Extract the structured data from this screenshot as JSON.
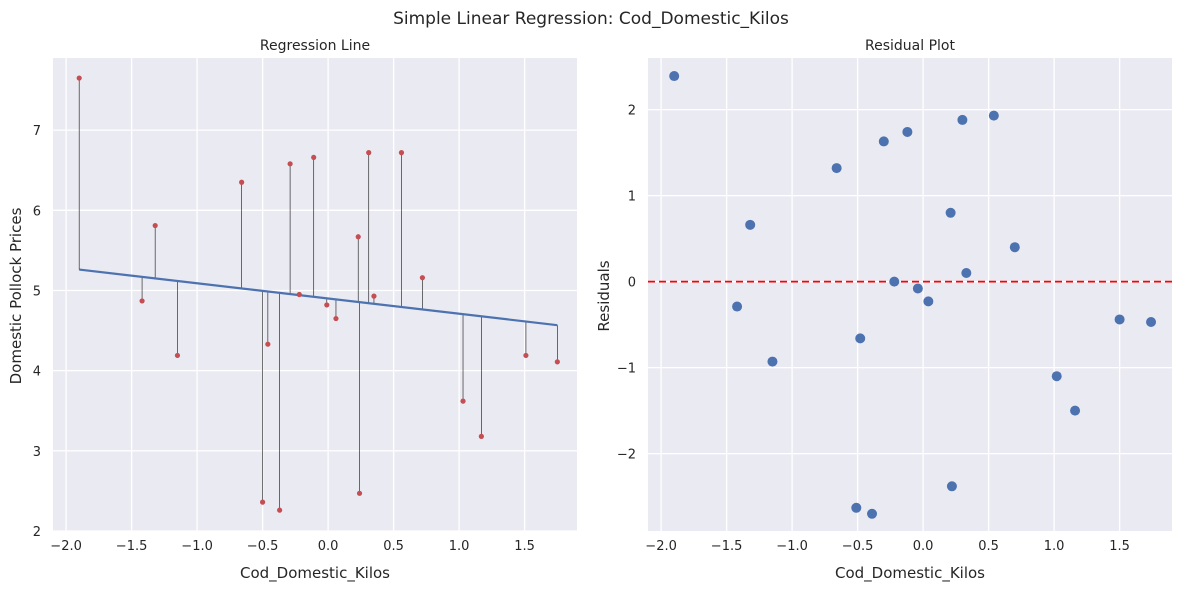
{
  "figure": {
    "suptitle": "Simple Linear Regression: Cod_Domestic_Kilos",
    "background": "#ffffff",
    "axes_facecolor": "#eaeaf2",
    "grid_color": "#ffffff"
  },
  "chart_data": [
    {
      "type": "scatter",
      "title": "Regression Line",
      "xlabel": "Cod_Domestic_Kilos",
      "ylabel": "Domestic Pollock Prices",
      "xlim": [
        -2.1,
        1.9
      ],
      "ylim": [
        2.0,
        7.9
      ],
      "xticks": [
        -2.0,
        -1.5,
        -1.0,
        -0.5,
        0.0,
        0.5,
        1.0,
        1.5
      ],
      "xtick_labels": [
        "−2.0",
        "−1.5",
        "−1.0",
        "−0.5",
        "0.0",
        "0.5",
        "1.0",
        "1.5"
      ],
      "yticks": [
        2,
        3,
        4,
        5,
        6,
        7
      ],
      "ytick_labels": [
        "2",
        "3",
        "4",
        "5",
        "6",
        "7"
      ],
      "grid": true,
      "point_color": "#c44e52",
      "line_color": "#4c72b0",
      "residual_line_color": "#000000",
      "regression_line": {
        "intercept": 4.9,
        "slope": -0.19
      },
      "x": [
        -1.9,
        -1.42,
        -1.32,
        -1.15,
        -0.66,
        -0.5,
        -0.46,
        -0.37,
        -0.22,
        -0.29,
        -0.11,
        -0.01,
        0.06,
        0.23,
        0.24,
        0.31,
        0.35,
        0.56,
        0.72,
        1.03,
        1.17,
        1.51,
        1.75
      ],
      "y": [
        7.65,
        4.87,
        5.81,
        4.19,
        6.35,
        2.36,
        4.33,
        2.26,
        4.95,
        6.58,
        6.66,
        4.82,
        4.65,
        5.67,
        2.47,
        6.72,
        4.93,
        6.72,
        5.16,
        3.62,
        3.18,
        4.19,
        4.11
      ]
    },
    {
      "type": "scatter",
      "title": "Residual Plot",
      "xlabel": "Cod_Domestic_Kilos",
      "ylabel": "Residuals",
      "xlim": [
        -2.1,
        1.9
      ],
      "ylim": [
        -2.9,
        2.6
      ],
      "xticks": [
        -2.0,
        -1.5,
        -1.0,
        -0.5,
        0.0,
        0.5,
        1.0,
        1.5
      ],
      "xtick_labels": [
        "−2.0",
        "−1.5",
        "−1.0",
        "−0.5",
        "0.0",
        "0.5",
        "1.0",
        "1.5"
      ],
      "yticks": [
        -2,
        -1,
        0,
        1,
        2
      ],
      "ytick_labels": [
        "−2",
        "−1",
        "0",
        "1",
        "2"
      ],
      "grid": true,
      "point_color": "#4c72b0",
      "zero_line": {
        "y": 0,
        "color": "#ff0000",
        "style": "dashed"
      },
      "x": [
        -1.9,
        -1.42,
        -1.32,
        -1.15,
        -0.66,
        -0.51,
        -0.48,
        -0.39,
        -0.3,
        -0.22,
        -0.12,
        -0.04,
        0.04,
        0.21,
        0.22,
        0.3,
        0.33,
        0.54,
        0.7,
        1.02,
        1.16,
        1.5,
        1.74
      ],
      "y": [
        2.39,
        -0.29,
        0.66,
        -0.93,
        1.32,
        -2.63,
        -0.66,
        -2.7,
        1.63,
        0.0,
        1.74,
        -0.08,
        -0.23,
        0.8,
        -2.38,
        1.88,
        0.1,
        1.93,
        0.4,
        -1.1,
        -1.5,
        -0.44,
        -0.47
      ]
    }
  ]
}
